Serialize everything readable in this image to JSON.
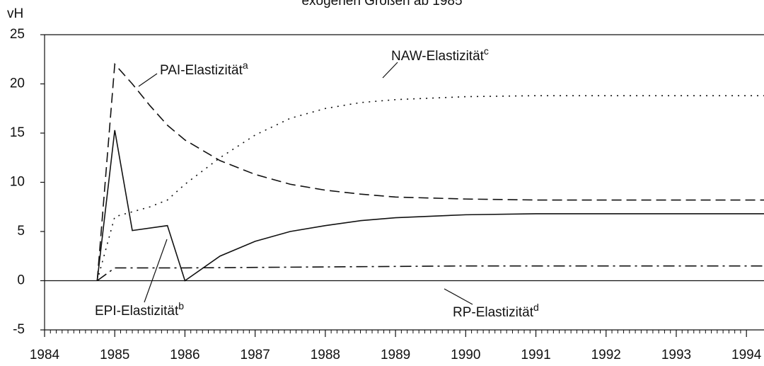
{
  "chart_data": {
    "type": "line",
    "title": "exogenen Größen ab 1985",
    "y_label": "vH",
    "xlim": [
      1984,
      1994.25
    ],
    "xticks": [
      1984,
      1985,
      1986,
      1987,
      1988,
      1989,
      1990,
      1991,
      1992,
      1993,
      1994
    ],
    "ylim": [
      -5,
      25
    ],
    "yticks": [
      25,
      20,
      15,
      10,
      5,
      0,
      -5
    ],
    "series": [
      {
        "name": "PAI-Elastizität",
        "sup": "a",
        "color": "#111111",
        "dash": "dashed",
        "x": [
          1984.75,
          1985,
          1985.25,
          1985.5,
          1985.75,
          1986,
          1986.5,
          1987,
          1987.5,
          1988,
          1988.5,
          1989,
          1990,
          1991,
          1992,
          1994.25
        ],
        "values": [
          0,
          22,
          20,
          17.8,
          15.8,
          14.3,
          12.2,
          10.8,
          9.8,
          9.2,
          8.8,
          8.5,
          8.3,
          8.2,
          8.2,
          8.2
        ]
      },
      {
        "name": "EPI-Elastizität",
        "sup": "b",
        "color": "#111111",
        "dash": "solid",
        "x": [
          1984.75,
          1985,
          1985.25,
          1985.75,
          1986,
          1986.5,
          1987,
          1987.5,
          1988,
          1988.5,
          1989,
          1990,
          1991,
          1994.25
        ],
        "values": [
          0,
          15.3,
          5.1,
          5.6,
          0,
          2.5,
          4.0,
          5.0,
          5.6,
          6.1,
          6.4,
          6.7,
          6.8,
          6.8
        ]
      },
      {
        "name": "NAW-Elastizität",
        "sup": "c",
        "color": "#111111",
        "dash": "dotted",
        "x": [
          1984.75,
          1985,
          1985.5,
          1985.75,
          1986,
          1986.5,
          1987,
          1987.5,
          1988,
          1988.5,
          1989,
          1990,
          1991,
          1994.25
        ],
        "values": [
          0,
          6.5,
          7.5,
          8.2,
          9.8,
          12.5,
          14.8,
          16.5,
          17.5,
          18.1,
          18.4,
          18.7,
          18.8,
          18.8
        ]
      },
      {
        "name": "RP-Elastizität",
        "sup": "d",
        "color": "#111111",
        "dash": "dashdot",
        "x": [
          1984.75,
          1985,
          1986,
          1988,
          1990,
          1994.25
        ],
        "values": [
          0,
          1.3,
          1.3,
          1.4,
          1.5,
          1.5
        ]
      }
    ]
  }
}
